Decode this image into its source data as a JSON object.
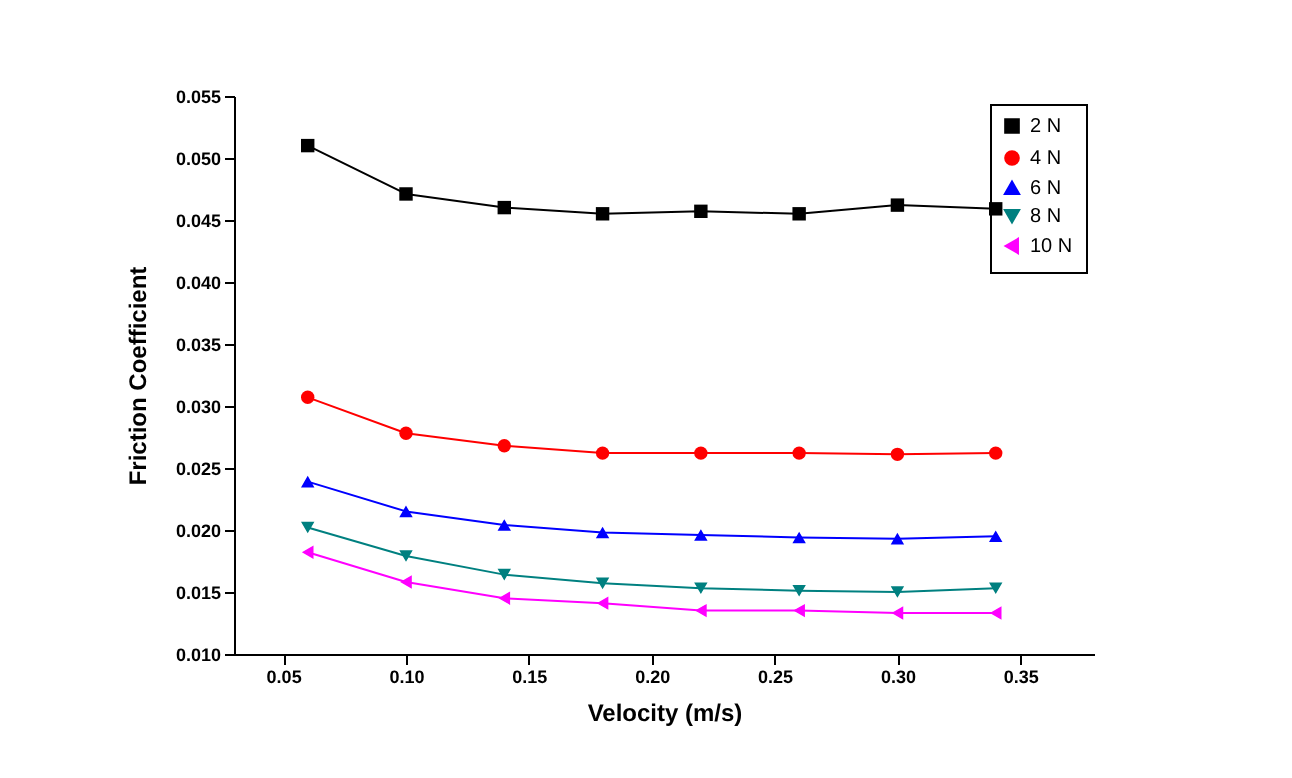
{
  "chart_data": {
    "type": "line",
    "xlabel": "Velocity (m/s)",
    "ylabel": "Friction Coefficient",
    "x": [
      0.06,
      0.1,
      0.14,
      0.18,
      0.22,
      0.26,
      0.3,
      0.34
    ],
    "series": [
      {
        "name": "2 N",
        "color": "#000000",
        "marker": "square",
        "values": [
          0.051,
          0.0471,
          0.046,
          0.0455,
          0.0457,
          0.0455,
          0.0462,
          0.0459
        ]
      },
      {
        "name": "4 N",
        "color": "#ff0000",
        "marker": "circle",
        "values": [
          0.0307,
          0.0278,
          0.0268,
          0.0262,
          0.0262,
          0.0262,
          0.0261,
          0.0262
        ]
      },
      {
        "name": "6 N",
        "color": "#0000ff",
        "marker": "triangle-up",
        "values": [
          0.0239,
          0.0215,
          0.0204,
          0.0198,
          0.0196,
          0.0194,
          0.0193,
          0.0195
        ]
      },
      {
        "name": "8 N",
        "color": "#008080",
        "marker": "triangle-down",
        "values": [
          0.0202,
          0.0179,
          0.0164,
          0.0157,
          0.0153,
          0.0151,
          0.015,
          0.0153
        ]
      },
      {
        "name": "10 N",
        "color": "#ff00ff",
        "marker": "triangle-left",
        "values": [
          0.0182,
          0.0158,
          0.0145,
          0.0141,
          0.0135,
          0.0135,
          0.0133,
          0.0133
        ]
      }
    ],
    "xlim": [
      0.03,
      0.38
    ],
    "xticks": [
      {
        "value": 0.05,
        "label": "0.05"
      },
      {
        "value": 0.1,
        "label": "0.10"
      },
      {
        "value": 0.15,
        "label": "0.15"
      },
      {
        "value": 0.2,
        "label": "0.20"
      },
      {
        "value": 0.25,
        "label": "0.25"
      },
      {
        "value": 0.3,
        "label": "0.30"
      },
      {
        "value": 0.35,
        "label": "0.35"
      }
    ],
    "ylim": [
      0.01,
      0.055
    ],
    "yticks": [
      {
        "value": 0.01,
        "label": "0.010"
      },
      {
        "value": 0.015,
        "label": "0.015"
      },
      {
        "value": 0.02,
        "label": "0.020"
      },
      {
        "value": 0.025,
        "label": "0.025"
      },
      {
        "value": 0.03,
        "label": "0.030"
      },
      {
        "value": 0.035,
        "label": "0.035"
      },
      {
        "value": 0.04,
        "label": "0.040"
      },
      {
        "value": 0.045,
        "label": "0.045"
      },
      {
        "value": 0.05,
        "label": "0.050"
      },
      {
        "value": 0.055,
        "label": "0.055"
      }
    ],
    "grid": false,
    "legend": "top right",
    "line_style": "solid"
  }
}
